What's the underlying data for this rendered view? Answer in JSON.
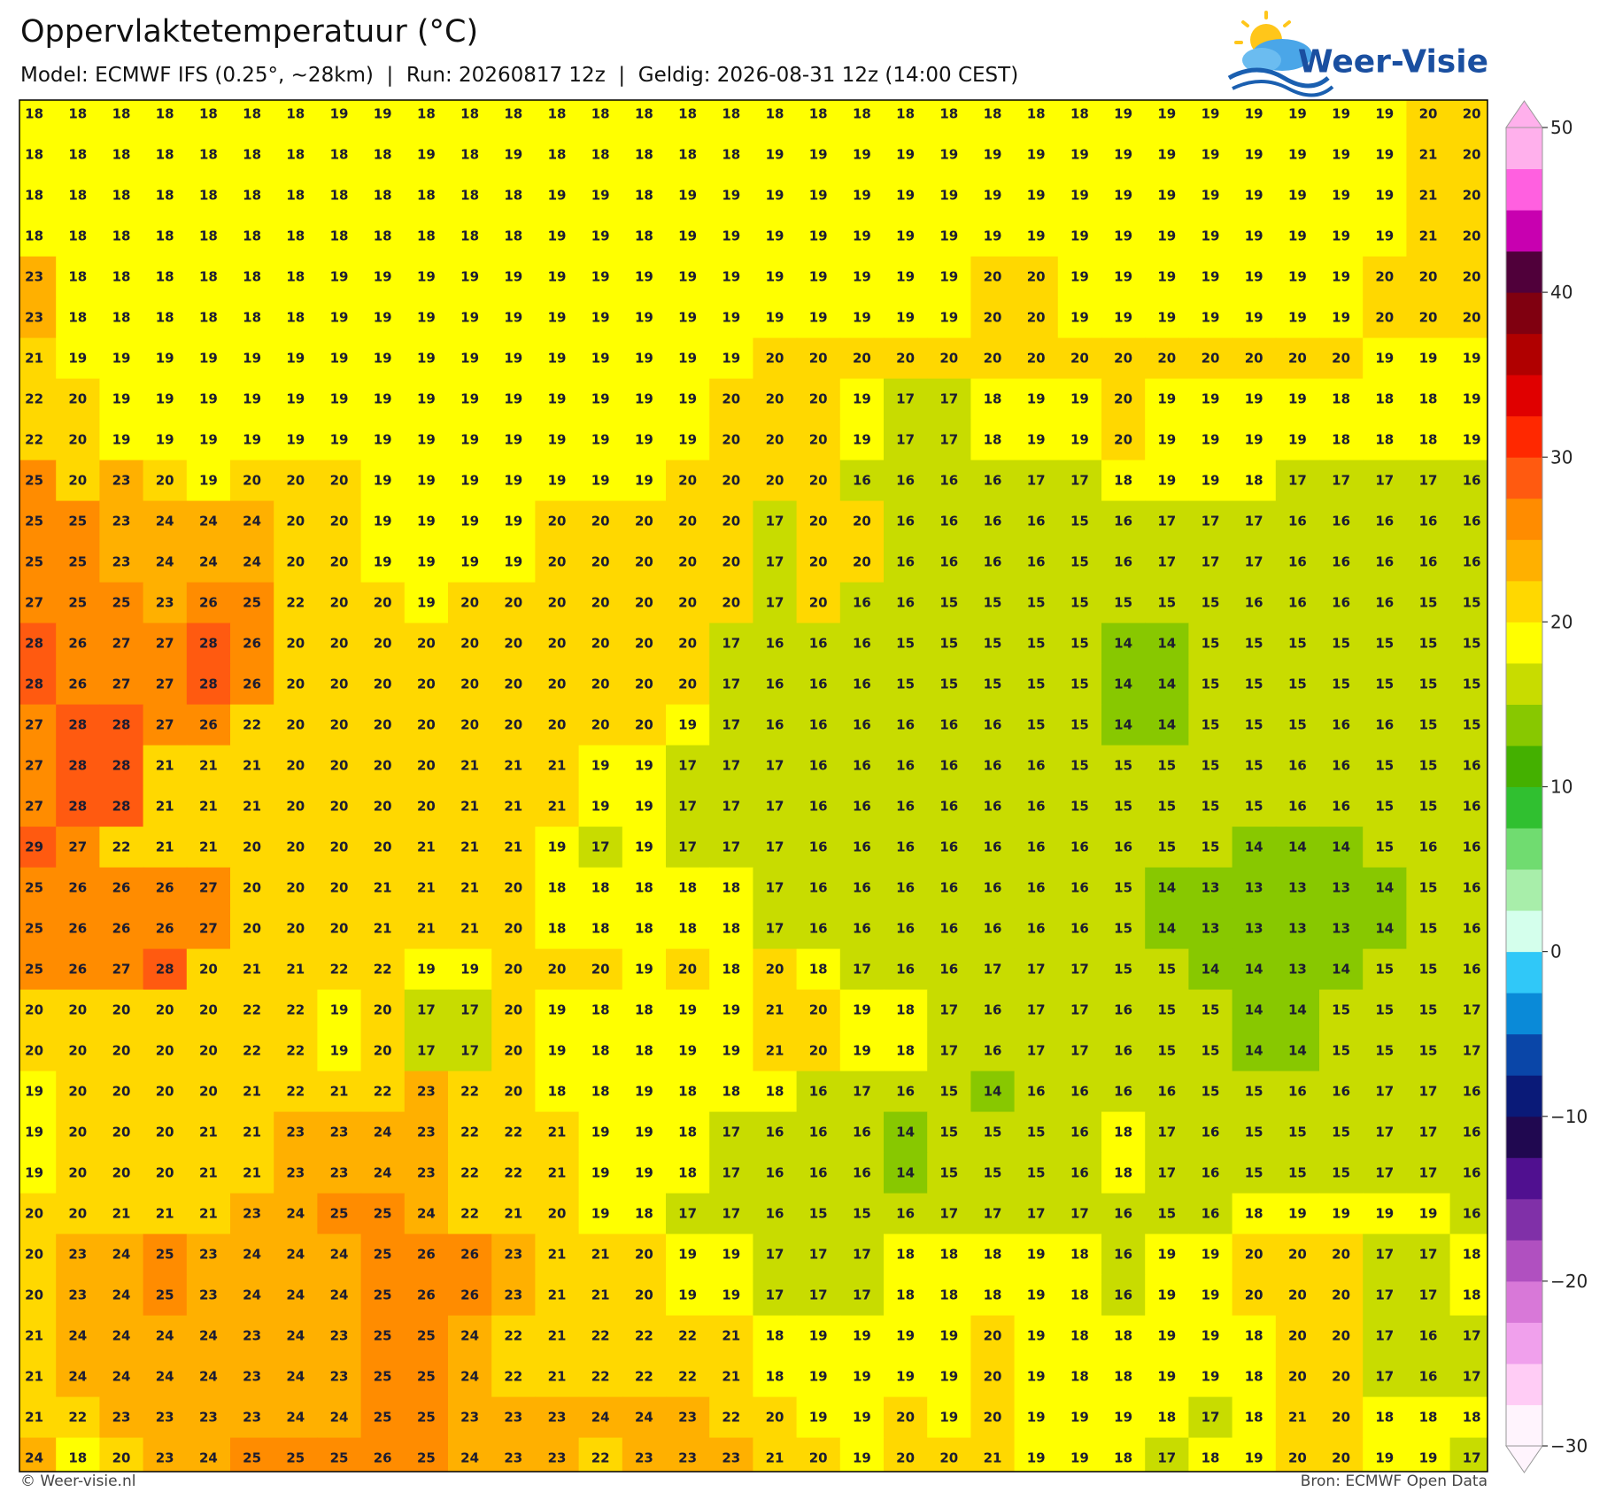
{
  "header": {
    "title": "Oppervlaktetemperatuur (°C)",
    "subtitle": "Model: ECMWF IFS (0.25°, ~28km)  |  Run: 20260817 12z  |  Geldig: 2026-08-31 12z (14:00 CEST)",
    "logo": "Weer-Visie"
  },
  "grid": {
    "rows": [
      [
        18,
        18,
        18,
        18,
        18,
        18,
        18,
        19,
        19,
        18,
        18,
        18,
        18,
        18,
        18,
        18,
        18,
        18,
        18,
        18,
        18,
        18,
        18,
        18,
        18,
        19,
        19,
        19,
        19,
        19,
        19,
        19,
        20,
        20
      ],
      [
        18,
        18,
        18,
        18,
        18,
        18,
        18,
        18,
        18,
        19,
        18,
        19,
        18,
        18,
        18,
        18,
        18,
        19,
        19,
        19,
        19,
        19,
        19,
        19,
        19,
        19,
        19,
        19,
        19,
        19,
        19,
        19,
        21,
        20
      ],
      [
        18,
        18,
        18,
        18,
        18,
        18,
        18,
        18,
        18,
        18,
        18,
        18,
        19,
        19,
        18,
        19,
        19,
        19,
        19,
        19,
        19,
        19,
        19,
        19,
        19,
        19,
        19,
        19,
        19,
        19,
        19,
        19,
        21,
        20
      ],
      [
        18,
        18,
        18,
        18,
        18,
        18,
        18,
        18,
        18,
        18,
        18,
        18,
        19,
        19,
        18,
        19,
        19,
        19,
        19,
        19,
        19,
        19,
        19,
        19,
        19,
        19,
        19,
        19,
        19,
        19,
        19,
        19,
        21,
        20
      ],
      [
        23,
        18,
        18,
        18,
        18,
        18,
        18,
        19,
        19,
        19,
        19,
        19,
        19,
        19,
        19,
        19,
        19,
        19,
        19,
        19,
        19,
        19,
        20,
        20,
        19,
        19,
        19,
        19,
        19,
        19,
        19,
        20,
        20,
        20
      ],
      [
        23,
        18,
        18,
        18,
        18,
        18,
        18,
        19,
        19,
        19,
        19,
        19,
        19,
        19,
        19,
        19,
        19,
        19,
        19,
        19,
        19,
        19,
        20,
        20,
        19,
        19,
        19,
        19,
        19,
        19,
        19,
        20,
        20,
        20
      ],
      [
        21,
        19,
        19,
        19,
        19,
        19,
        19,
        19,
        19,
        19,
        19,
        19,
        19,
        19,
        19,
        19,
        19,
        20,
        20,
        20,
        20,
        20,
        20,
        20,
        20,
        20,
        20,
        20,
        20,
        20,
        20,
        19,
        19,
        19
      ],
      [
        22,
        20,
        19,
        19,
        19,
        19,
        19,
        19,
        19,
        19,
        19,
        19,
        19,
        19,
        19,
        19,
        20,
        20,
        20,
        19,
        17,
        17,
        18,
        19,
        19,
        20,
        19,
        19,
        19,
        19,
        18,
        18,
        18,
        19
      ],
      [
        22,
        20,
        19,
        19,
        19,
        19,
        19,
        19,
        19,
        19,
        19,
        19,
        19,
        19,
        19,
        19,
        20,
        20,
        20,
        19,
        17,
        17,
        18,
        19,
        19,
        20,
        19,
        19,
        19,
        19,
        18,
        18,
        18,
        19
      ],
      [
        25,
        20,
        23,
        20,
        19,
        20,
        20,
        20,
        19,
        19,
        19,
        19,
        19,
        19,
        19,
        20,
        20,
        20,
        20,
        16,
        16,
        16,
        16,
        17,
        17,
        18,
        19,
        19,
        18,
        17,
        17,
        17,
        17,
        16
      ],
      [
        25,
        25,
        23,
        24,
        24,
        24,
        20,
        20,
        19,
        19,
        19,
        19,
        20,
        20,
        20,
        20,
        20,
        17,
        20,
        20,
        16,
        16,
        16,
        16,
        15,
        16,
        17,
        17,
        17,
        16,
        16,
        16,
        16,
        16
      ],
      [
        25,
        25,
        23,
        24,
        24,
        24,
        20,
        20,
        19,
        19,
        19,
        19,
        20,
        20,
        20,
        20,
        20,
        17,
        20,
        20,
        16,
        16,
        16,
        16,
        15,
        16,
        17,
        17,
        17,
        16,
        16,
        16,
        16,
        16
      ],
      [
        27,
        25,
        25,
        23,
        26,
        25,
        22,
        20,
        20,
        19,
        20,
        20,
        20,
        20,
        20,
        20,
        20,
        17,
        20,
        16,
        16,
        15,
        15,
        15,
        15,
        15,
        15,
        15,
        16,
        16,
        16,
        16,
        15,
        15
      ],
      [
        28,
        26,
        27,
        27,
        28,
        26,
        20,
        20,
        20,
        20,
        20,
        20,
        20,
        20,
        20,
        20,
        17,
        16,
        16,
        16,
        15,
        15,
        15,
        15,
        15,
        14,
        14,
        15,
        15,
        15,
        15,
        15,
        15,
        15
      ],
      [
        28,
        26,
        27,
        27,
        28,
        26,
        20,
        20,
        20,
        20,
        20,
        20,
        20,
        20,
        20,
        20,
        17,
        16,
        16,
        16,
        15,
        15,
        15,
        15,
        15,
        14,
        14,
        15,
        15,
        15,
        15,
        15,
        15,
        15
      ],
      [
        27,
        28,
        28,
        27,
        26,
        22,
        20,
        20,
        20,
        20,
        20,
        20,
        20,
        20,
        20,
        19,
        17,
        16,
        16,
        16,
        16,
        16,
        16,
        15,
        15,
        14,
        14,
        15,
        15,
        15,
        16,
        16,
        15,
        15
      ],
      [
        27,
        28,
        28,
        21,
        21,
        21,
        20,
        20,
        20,
        20,
        21,
        21,
        21,
        19,
        19,
        17,
        17,
        17,
        16,
        16,
        16,
        16,
        16,
        16,
        15,
        15,
        15,
        15,
        15,
        16,
        16,
        15,
        15,
        16
      ],
      [
        27,
        28,
        28,
        21,
        21,
        21,
        20,
        20,
        20,
        20,
        21,
        21,
        21,
        19,
        19,
        17,
        17,
        17,
        16,
        16,
        16,
        16,
        16,
        16,
        15,
        15,
        15,
        15,
        15,
        16,
        16,
        15,
        15,
        16
      ],
      [
        29,
        27,
        22,
        21,
        21,
        20,
        20,
        20,
        20,
        21,
        21,
        21,
        19,
        17,
        19,
        17,
        17,
        17,
        16,
        16,
        16,
        16,
        16,
        16,
        16,
        16,
        15,
        15,
        14,
        14,
        14,
        15,
        16,
        16
      ],
      [
        25,
        26,
        26,
        26,
        27,
        20,
        20,
        20,
        21,
        21,
        21,
        20,
        18,
        18,
        18,
        18,
        18,
        17,
        16,
        16,
        16,
        16,
        16,
        16,
        16,
        15,
        14,
        13,
        13,
        13,
        13,
        14,
        15,
        16
      ],
      [
        25,
        26,
        26,
        26,
        27,
        20,
        20,
        20,
        21,
        21,
        21,
        20,
        18,
        18,
        18,
        18,
        18,
        17,
        16,
        16,
        16,
        16,
        16,
        16,
        16,
        15,
        14,
        13,
        13,
        13,
        13,
        14,
        15,
        16
      ],
      [
        25,
        26,
        27,
        28,
        20,
        21,
        21,
        22,
        22,
        19,
        19,
        20,
        20,
        20,
        19,
        20,
        18,
        20,
        18,
        17,
        16,
        16,
        17,
        17,
        17,
        15,
        15,
        14,
        14,
        13,
        14,
        15,
        15,
        16
      ],
      [
        20,
        20,
        20,
        20,
        20,
        22,
        22,
        19,
        20,
        17,
        17,
        20,
        19,
        18,
        18,
        19,
        19,
        21,
        20,
        19,
        18,
        17,
        16,
        17,
        17,
        16,
        15,
        15,
        14,
        14,
        15,
        15,
        15,
        17
      ],
      [
        20,
        20,
        20,
        20,
        20,
        22,
        22,
        19,
        20,
        17,
        17,
        20,
        19,
        18,
        18,
        19,
        19,
        21,
        20,
        19,
        18,
        17,
        16,
        17,
        17,
        16,
        15,
        15,
        14,
        14,
        15,
        15,
        15,
        17
      ],
      [
        19,
        20,
        20,
        20,
        20,
        21,
        22,
        21,
        22,
        23,
        22,
        20,
        18,
        18,
        19,
        18,
        18,
        18,
        16,
        17,
        16,
        15,
        14,
        16,
        16,
        16,
        16,
        15,
        15,
        16,
        16,
        17,
        17,
        16
      ],
      [
        19,
        20,
        20,
        20,
        21,
        21,
        23,
        23,
        24,
        23,
        22,
        22,
        21,
        19,
        19,
        18,
        17,
        16,
        16,
        16,
        14,
        15,
        15,
        15,
        16,
        18,
        17,
        16,
        15,
        15,
        15,
        17,
        17,
        16
      ],
      [
        19,
        20,
        20,
        20,
        21,
        21,
        23,
        23,
        24,
        23,
        22,
        22,
        21,
        19,
        19,
        18,
        17,
        16,
        16,
        16,
        14,
        15,
        15,
        15,
        16,
        18,
        17,
        16,
        15,
        15,
        15,
        17,
        17,
        16
      ],
      [
        20,
        20,
        21,
        21,
        21,
        23,
        24,
        25,
        25,
        24,
        22,
        21,
        20,
        19,
        18,
        17,
        17,
        16,
        15,
        15,
        16,
        17,
        17,
        17,
        17,
        16,
        15,
        16,
        18,
        19,
        19,
        19,
        19,
        16
      ],
      [
        20,
        23,
        24,
        25,
        23,
        24,
        24,
        24,
        25,
        26,
        26,
        23,
        21,
        21,
        20,
        19,
        19,
        17,
        17,
        17,
        18,
        18,
        18,
        19,
        18,
        16,
        19,
        19,
        20,
        20,
        20,
        17,
        17,
        18
      ],
      [
        20,
        23,
        24,
        25,
        23,
        24,
        24,
        24,
        25,
        26,
        26,
        23,
        21,
        21,
        20,
        19,
        19,
        17,
        17,
        17,
        18,
        18,
        18,
        19,
        18,
        16,
        19,
        19,
        20,
        20,
        20,
        17,
        17,
        18
      ],
      [
        21,
        24,
        24,
        24,
        24,
        23,
        24,
        23,
        25,
        25,
        24,
        22,
        21,
        22,
        22,
        22,
        21,
        18,
        19,
        19,
        19,
        19,
        20,
        19,
        18,
        18,
        19,
        19,
        18,
        20,
        20,
        17,
        16,
        17
      ],
      [
        21,
        24,
        24,
        24,
        24,
        23,
        24,
        23,
        25,
        25,
        24,
        22,
        21,
        22,
        22,
        22,
        21,
        18,
        19,
        19,
        19,
        19,
        20,
        19,
        18,
        18,
        19,
        19,
        18,
        20,
        20,
        17,
        16,
        17
      ],
      [
        21,
        22,
        23,
        23,
        23,
        23,
        24,
        24,
        25,
        25,
        23,
        23,
        23,
        24,
        24,
        23,
        22,
        20,
        19,
        19,
        20,
        19,
        20,
        19,
        19,
        19,
        18,
        17,
        18,
        21,
        20,
        18,
        18,
        18
      ],
      [
        24,
        18,
        20,
        23,
        24,
        25,
        25,
        25,
        26,
        25,
        24,
        23,
        23,
        22,
        23,
        23,
        23,
        21,
        20,
        19,
        20,
        20,
        21,
        19,
        19,
        18,
        17,
        18,
        19,
        20,
        20,
        19,
        19,
        17
      ]
    ]
  },
  "colorbar": {
    "lim": [
      -30,
      50
    ],
    "ticks": [
      50,
      40,
      30,
      20,
      10,
      0,
      {
        "value": -10,
        "label": "−10"
      },
      {
        "value": -20,
        "label": "−20"
      },
      {
        "value": -30,
        "label": "−30"
      }
    ],
    "colors": [
      "#fff4fd",
      "#ffccf5",
      "#f0a0ec",
      "#d878d8",
      "#b050c0",
      "#8030a8",
      "#501090",
      "#200850",
      "#0a1a78",
      "#0a46a8",
      "#0a8ad8",
      "#30c8f8",
      "#d4ffec",
      "#a8eeaa",
      "#70dc70",
      "#30c030",
      "#44b000",
      "#88c800",
      "#c8dc00",
      "#ffff00",
      "#ffd800",
      "#ffb000",
      "#ff8c00",
      "#ff5a10",
      "#ff2800",
      "#e00000",
      "#b00000",
      "#800010",
      "#50003a",
      "#c800b0",
      "#ff60e0",
      "#ffb0ec"
    ]
  },
  "footer": {
    "left": "© Weer-visie.nl",
    "right": "Bron: ECMWF Open Data"
  }
}
